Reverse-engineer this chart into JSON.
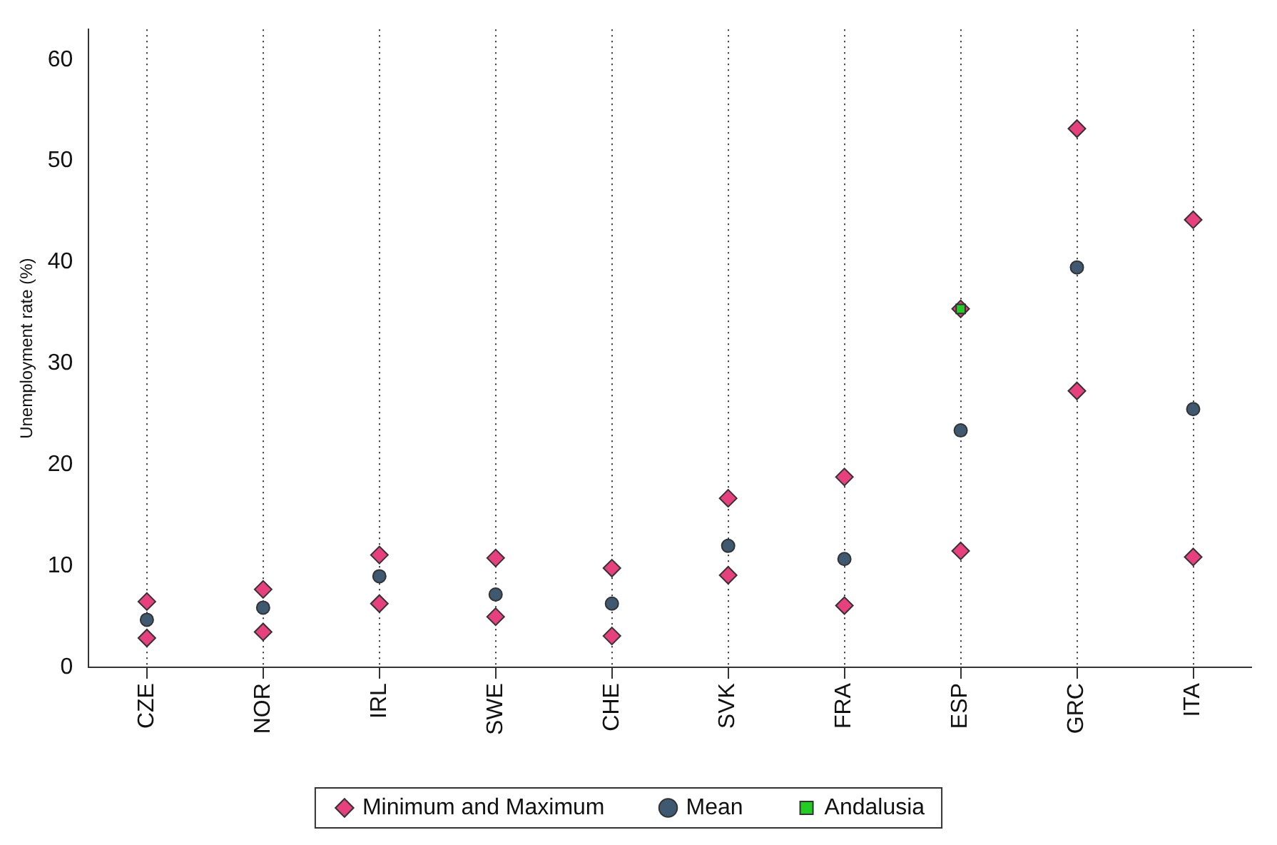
{
  "chart_data": {
    "type": "scatter",
    "ylabel": "Unemployment rate (%)",
    "categories": [
      "CZE",
      "NOR",
      "IRL",
      "SWE",
      "CHE",
      "SVK",
      "FRA",
      "ESP",
      "GRC",
      "ITA"
    ],
    "ylim": [
      0,
      63
    ],
    "yticks": [
      0,
      10,
      20,
      30,
      40,
      50,
      60
    ],
    "grid": "x",
    "legend": "bottom",
    "series": [
      {
        "name": "Minimum and Maximum",
        "color": "#e8407f",
        "marker": "diamond",
        "x": [
          "CZE",
          "CZE",
          "NOR",
          "NOR",
          "IRL",
          "IRL",
          "SWE",
          "SWE",
          "CHE",
          "CHE",
          "SVK",
          "SVK",
          "FRA",
          "FRA",
          "ESP",
          "ESP",
          "GRC",
          "GRC",
          "ITA",
          "ITA"
        ],
        "values": [
          6.5,
          2.9,
          7.7,
          3.5,
          11.1,
          6.3,
          10.8,
          5.0,
          9.8,
          3.1,
          16.7,
          9.1,
          18.8,
          6.1,
          35.4,
          11.5,
          53.2,
          27.3,
          44.2,
          10.9
        ]
      },
      {
        "name": "Mean",
        "color": "#3f5a70",
        "marker": "circle",
        "x": [
          "CZE",
          "NOR",
          "IRL",
          "SWE",
          "CHE",
          "SVK",
          "FRA",
          "ESP",
          "GRC",
          "ITA"
        ],
        "values": [
          4.7,
          5.9,
          9.0,
          7.2,
          6.3,
          12.0,
          10.7,
          23.4,
          39.5,
          25.5
        ]
      },
      {
        "name": "Andalusia",
        "color": "#22cc22",
        "marker": "square",
        "x": [
          "ESP"
        ],
        "values": [
          35.4
        ]
      }
    ]
  }
}
